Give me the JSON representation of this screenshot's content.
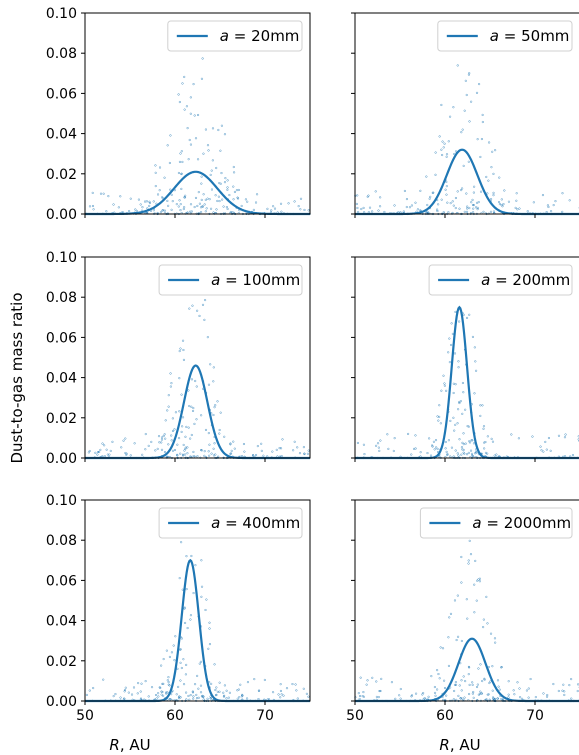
{
  "figure": {
    "ylabel": "Dust-to-gas mass ratio",
    "xlabel_var": "R",
    "xlabel_unit": ",  AU"
  },
  "colors": {
    "line": "#1f77b4",
    "scatter": "#1f77b4",
    "axis": "#000000"
  },
  "chart_data": [
    {
      "type": "line",
      "legend_prefix": "a",
      "legend_value": "= 20mm",
      "xlim": [
        50,
        75
      ],
      "ylim": [
        0,
        0.1
      ],
      "yticks": [
        "0.00",
        "0.02",
        "0.04",
        "0.06",
        "0.08",
        "0.10"
      ],
      "xticks": [],
      "legend_position": "top-right",
      "peak_R": 62.3,
      "peak_value": 0.021,
      "width": 2.4,
      "scatter": {
        "center": 62.3,
        "spread": 4.0,
        "count": 260,
        "max": 0.08,
        "seed": 11
      }
    },
    {
      "type": "line",
      "legend_prefix": "a",
      "legend_value": "= 50mm",
      "xlim": [
        50,
        75
      ],
      "ylim": [
        0,
        0.1
      ],
      "yticks": [],
      "xticks": [],
      "legend_position": "top-right",
      "peak_R": 61.9,
      "peak_value": 0.032,
      "width": 1.7,
      "scatter": {
        "center": 62.0,
        "spread": 3.2,
        "count": 240,
        "max": 0.099,
        "seed": 23
      }
    },
    {
      "type": "line",
      "legend_prefix": "a",
      "legend_value": "= 100mm",
      "xlim": [
        50,
        75
      ],
      "ylim": [
        0,
        0.1
      ],
      "yticks": [
        "0.00",
        "0.02",
        "0.04",
        "0.06",
        "0.08",
        "0.10"
      ],
      "xticks": [],
      "legend_position": "top-right",
      "peak_R": 62.3,
      "peak_value": 0.046,
      "width": 1.3,
      "scatter": {
        "center": 62.0,
        "spread": 2.6,
        "count": 240,
        "max": 0.1,
        "seed": 37
      }
    },
    {
      "type": "line",
      "legend_prefix": "a",
      "legend_value": "= 200mm",
      "xlim": [
        50,
        75
      ],
      "ylim": [
        0,
        0.1
      ],
      "yticks": [],
      "xticks": [],
      "legend_position": "top-right",
      "peak_R": 61.6,
      "peak_value": 0.075,
      "width": 0.85,
      "scatter": {
        "center": 61.8,
        "spread": 2.2,
        "count": 240,
        "max": 0.085,
        "seed": 41
      }
    },
    {
      "type": "line",
      "legend_prefix": "a",
      "legend_value": "= 400mm",
      "xlim": [
        50,
        75
      ],
      "ylim": [
        0,
        0.1
      ],
      "yticks": [
        "0.00",
        "0.02",
        "0.04",
        "0.06",
        "0.08",
        "0.10"
      ],
      "xticks": [
        "50",
        "60",
        "70"
      ],
      "legend_position": "top-right",
      "peak_R": 61.7,
      "peak_value": 0.07,
      "width": 0.95,
      "scatter": {
        "center": 61.5,
        "spread": 2.4,
        "count": 250,
        "max": 0.098,
        "seed": 53
      }
    },
    {
      "type": "line",
      "legend_prefix": "a",
      "legend_value": "= 2000mm",
      "xlim": [
        50,
        75
      ],
      "ylim": [
        0,
        0.1
      ],
      "yticks": [],
      "xticks": [
        "50",
        "60",
        "70"
      ],
      "legend_position": "top-right",
      "peak_R": 63.0,
      "peak_value": 0.031,
      "width": 1.5,
      "scatter": {
        "center": 62.6,
        "spread": 3.0,
        "count": 250,
        "max": 0.08,
        "seed": 67
      }
    }
  ]
}
